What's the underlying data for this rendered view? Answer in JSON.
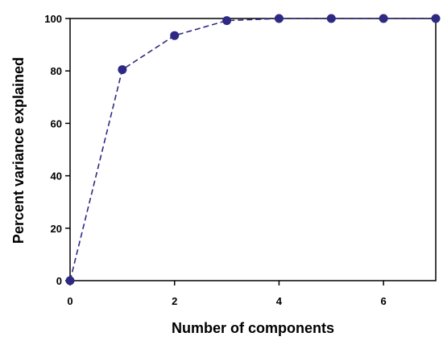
{
  "chart_data": {
    "type": "line",
    "title": "",
    "xlabel": "Number of components",
    "ylabel": "Percent variance explained",
    "xlim": [
      0,
      7
    ],
    "ylim": [
      0,
      100
    ],
    "xticks": [
      0,
      2,
      4,
      6
    ],
    "yticks": [
      0,
      20,
      40,
      60,
      80,
      100
    ],
    "xtick_labels": [
      "0",
      "2",
      "4",
      "6"
    ],
    "ytick_labels": [
      "0",
      "20",
      "40",
      "60",
      "80",
      "100"
    ],
    "grid": false,
    "legend": "none",
    "series": [
      {
        "x": [
          0,
          1,
          2,
          3,
          4,
          5,
          6,
          7
        ],
        "values": [
          0,
          80.5,
          93.5,
          99.2,
          100,
          100,
          100,
          100
        ],
        "line_style": "dashed",
        "marker": "circle"
      }
    ],
    "colors": {
      "series": "#2e2a83",
      "axis": "#000000"
    }
  }
}
